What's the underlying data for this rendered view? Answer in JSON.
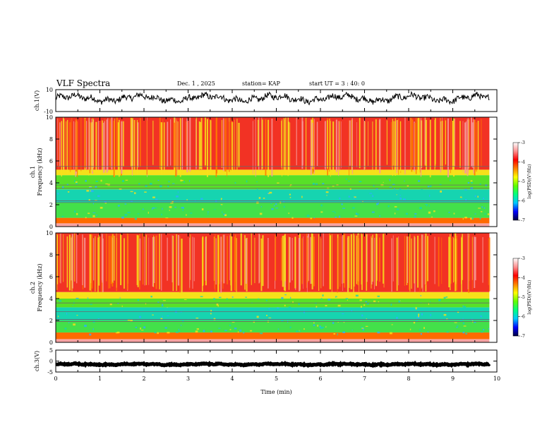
{
  "header": {
    "title": "VLF Spectra",
    "date": "Dec. 1 , 2025",
    "station": "station= KAP",
    "start": "start UT = 3 : 40: 0"
  },
  "chart_data": [
    {
      "type": "line",
      "name": "ch1-waveform",
      "ylabel": "ch.1(V)",
      "ylim": [
        -10,
        10
      ],
      "yticks": [
        "10",
        "-10"
      ],
      "xlim": [
        0,
        10
      ],
      "duration_min": 9.83,
      "mean": 2,
      "amplitude": 6
    },
    {
      "type": "heatmap",
      "name": "ch1-spectrogram",
      "ylabel": "ch.1 Frequency (kHz)",
      "ylim": [
        0,
        10
      ],
      "yticks": [
        "0",
        "2",
        "4",
        "6",
        "8",
        "10"
      ],
      "xlim": [
        0,
        10
      ],
      "duration_min": 9.83,
      "lines_khz": [
        2.2,
        2.35,
        3.5,
        3.8,
        5.5
      ],
      "bands": [
        {
          "from": 0,
          "to": 0.3,
          "color": "#f7a3a3"
        },
        {
          "from": 0.3,
          "to": 0.8,
          "color": "#ff6a00"
        },
        {
          "from": 0.8,
          "to": 2.2,
          "color": "#43e04a"
        },
        {
          "from": 2.2,
          "to": 3.4,
          "color": "#16d4b0"
        },
        {
          "from": 3.4,
          "to": 4.7,
          "color": "#58e028"
        },
        {
          "from": 4.7,
          "to": 5.2,
          "color": "#f6e01a"
        },
        {
          "from": 5.2,
          "to": 10,
          "color": "#f23224"
        }
      ]
    },
    {
      "type": "heatmap",
      "name": "ch2-spectrogram",
      "ylabel": "ch.2 Frequency (kHz)",
      "ylim": [
        0,
        10
      ],
      "yticks": [
        "0",
        "2",
        "4",
        "6",
        "8",
        "10"
      ],
      "xlim": [
        0,
        10
      ],
      "duration_min": 9.83,
      "lines_khz": [
        1.9,
        2.1,
        2.8,
        3.6
      ],
      "bands": [
        {
          "from": 0,
          "to": 0.3,
          "color": "#f7a3a3"
        },
        {
          "from": 0.3,
          "to": 0.9,
          "color": "#ff6a00"
        },
        {
          "from": 0.9,
          "to": 2.0,
          "color": "#43e04a"
        },
        {
          "from": 2.0,
          "to": 3.2,
          "color": "#16d4b0"
        },
        {
          "from": 3.2,
          "to": 4.0,
          "color": "#58e028"
        },
        {
          "from": 4.0,
          "to": 4.6,
          "color": "#f6e01a"
        },
        {
          "from": 4.6,
          "to": 10,
          "color": "#f23224"
        }
      ]
    },
    {
      "type": "line",
      "name": "ch3-waveform",
      "ylabel": "ch.3(V)",
      "ylim": [
        -5,
        5
      ],
      "yticks": [
        "5",
        "0",
        "-5"
      ],
      "xlim": [
        0,
        10
      ],
      "duration_min": 9.83,
      "mean": -1.5,
      "amplitude": 0.5
    }
  ],
  "xaxis": {
    "label": "Time (min)",
    "ticks": [
      "0",
      "1",
      "2",
      "3",
      "4",
      "5",
      "6",
      "7",
      "8",
      "9",
      "10"
    ]
  },
  "colorbar": {
    "label": "log(PSD)(V²/Hz)",
    "ticks": [
      "-3",
      "-4",
      "-5",
      "-6",
      "-7"
    ],
    "range": [
      -7,
      -3
    ],
    "stops": [
      "#000040",
      "#0000ff",
      "#00c8ff",
      "#00ff80",
      "#60ff00",
      "#ffff00",
      "#ff8000",
      "#ff0000",
      "#ff9090",
      "#ffffff"
    ]
  }
}
